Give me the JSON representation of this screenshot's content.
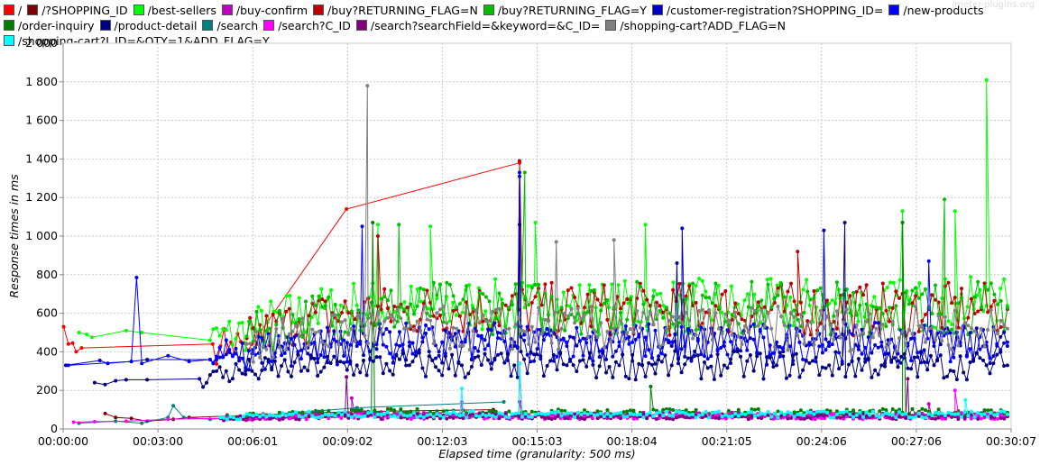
{
  "watermark": "jmeter-plugins.org",
  "chart_data": {
    "type": "line",
    "xlabel": "Elapsed time (granularity: 500 ms)",
    "ylabel": "Response times in ms",
    "ylim": [
      0,
      2000
    ],
    "xlim_seconds": [
      0,
      1807
    ],
    "x_ticks": [
      "00:00:00",
      "00:03:00",
      "00:06:01",
      "00:09:02",
      "00:12:03",
      "00:15:03",
      "00:18:04",
      "00:21:05",
      "00:24:06",
      "00:27:06",
      "00:30:07"
    ],
    "y_ticks": [
      "0",
      "200",
      "400",
      "600",
      "800",
      "1 000",
      "1 200",
      "1 400",
      "1 600",
      "1 800",
      "2 000"
    ],
    "grid": true,
    "legend_position": "top",
    "series": [
      {
        "name": "/",
        "color": "#ff0000",
        "points": [
          [
            1,
            530
          ],
          [
            10,
            440
          ],
          [
            18,
            445
          ],
          [
            25,
            400
          ],
          [
            35,
            420
          ],
          [
            285,
            440
          ],
          [
            300,
            430
          ],
          [
            320,
            450
          ],
          [
            345,
            445
          ],
          [
            360,
            440
          ]
        ],
        "peaks": [
          [
            540,
            1140
          ],
          [
            870,
            1380
          ]
        ]
      },
      {
        "name": "/?SHOPPING_ID",
        "color": "#800000",
        "points": [
          [
            80,
            80
          ],
          [
            100,
            60
          ],
          [
            130,
            55
          ],
          [
            160,
            40
          ],
          [
            210,
            50
          ],
          [
            240,
            60
          ]
        ],
        "peaks": [
          [
            560,
            90
          ],
          [
            820,
            100
          ]
        ]
      },
      {
        "name": "/best-sellers",
        "color": "#00ff00",
        "points": [
          [
            30,
            500
          ],
          [
            45,
            490
          ],
          [
            55,
            475
          ],
          [
            120,
            510
          ],
          [
            150,
            500
          ],
          [
            280,
            460
          ],
          [
            360,
            520
          ],
          [
            420,
            580
          ],
          [
            480,
            600
          ],
          [
            560,
            640
          ],
          [
            620,
            630
          ],
          [
            700,
            620
          ],
          [
            780,
            640
          ],
          [
            880,
            630
          ],
          [
            960,
            640
          ],
          [
            1040,
            630
          ],
          [
            1120,
            640
          ],
          [
            1200,
            640
          ],
          [
            1280,
            630
          ],
          [
            1380,
            640
          ],
          [
            1460,
            650
          ],
          [
            1540,
            640
          ],
          [
            1620,
            640
          ],
          [
            1700,
            650
          ],
          [
            1760,
            640
          ],
          [
            1800,
            640
          ]
        ],
        "peaks": [
          [
            600,
            1060
          ],
          [
            700,
            1050
          ],
          [
            900,
            1070
          ],
          [
            1110,
            1060
          ],
          [
            1600,
            1130
          ],
          [
            1700,
            1130
          ],
          [
            1760,
            1810
          ]
        ]
      },
      {
        "name": "/buy-confirm",
        "color": "#c000c0",
        "points": [
          [
            300,
            60
          ],
          [
            400,
            65
          ],
          [
            500,
            70
          ],
          [
            600,
            72
          ],
          [
            700,
            70
          ],
          [
            800,
            70
          ],
          [
            900,
            72
          ],
          [
            1000,
            70
          ],
          [
            1100,
            72
          ],
          [
            1200,
            70
          ],
          [
            1300,
            72
          ],
          [
            1400,
            70
          ],
          [
            1500,
            72
          ],
          [
            1600,
            70
          ],
          [
            1700,
            72
          ],
          [
            1800,
            70
          ]
        ],
        "peaks": [
          [
            550,
            160
          ],
          [
            870,
            140
          ],
          [
            1650,
            130
          ]
        ]
      },
      {
        "name": "/buy?RETURNING_FLAG=N",
        "color": "#c00000",
        "points": [
          [
            350,
            470
          ],
          [
            450,
            560
          ],
          [
            550,
            600
          ],
          [
            650,
            610
          ],
          [
            750,
            620
          ],
          [
            850,
            620
          ],
          [
            950,
            620
          ],
          [
            1050,
            620
          ],
          [
            1150,
            620
          ],
          [
            1250,
            620
          ],
          [
            1350,
            620
          ],
          [
            1450,
            620
          ],
          [
            1550,
            620
          ],
          [
            1650,
            620
          ],
          [
            1750,
            620
          ],
          [
            1800,
            620
          ]
        ],
        "peaks": [
          [
            600,
            1000
          ],
          [
            870,
            1390
          ],
          [
            1400,
            920
          ]
        ]
      },
      {
        "name": "/buy?RETURNING_FLAG=Y",
        "color": "#00c000",
        "points": [
          [
            350,
            480
          ],
          [
            450,
            570
          ],
          [
            550,
            610
          ],
          [
            650,
            620
          ],
          [
            750,
            630
          ],
          [
            850,
            630
          ],
          [
            950,
            630
          ],
          [
            1050,
            630
          ],
          [
            1150,
            630
          ],
          [
            1250,
            630
          ],
          [
            1350,
            630
          ],
          [
            1450,
            630
          ],
          [
            1550,
            630
          ],
          [
            1650,
            630
          ],
          [
            1750,
            630
          ],
          [
            1800,
            630
          ]
        ],
        "peaks": [
          [
            640,
            1060
          ],
          [
            880,
            1330
          ],
          [
            1680,
            1190
          ]
        ]
      },
      {
        "name": "/customer-registration?SHOPPING_ID=",
        "color": "#0000c0",
        "points": [
          [
            5,
            330
          ],
          [
            70,
            355
          ],
          [
            85,
            340
          ],
          [
            130,
            350
          ],
          [
            160,
            360
          ],
          [
            280,
            360
          ],
          [
            360,
            390
          ],
          [
            460,
            420
          ],
          [
            560,
            430
          ],
          [
            660,
            430
          ],
          [
            760,
            430
          ],
          [
            860,
            430
          ],
          [
            960,
            430
          ],
          [
            1060,
            430
          ],
          [
            1160,
            430
          ],
          [
            1260,
            430
          ],
          [
            1360,
            430
          ],
          [
            1460,
            430
          ],
          [
            1560,
            430
          ],
          [
            1660,
            430
          ],
          [
            1760,
            430
          ],
          [
            1800,
            430
          ]
        ],
        "peaks": [
          [
            870,
            1310
          ],
          [
            1180,
            1040
          ],
          [
            1450,
            1030
          ]
        ]
      },
      {
        "name": "/new-products",
        "color": "#0000ff",
        "points": [
          [
            10,
            330
          ],
          [
            130,
            350
          ],
          [
            140,
            785
          ],
          [
            150,
            340
          ],
          [
            200,
            380
          ],
          [
            240,
            350
          ],
          [
            280,
            360
          ],
          [
            360,
            410
          ],
          [
            460,
            440
          ],
          [
            560,
            450
          ],
          [
            660,
            450
          ],
          [
            760,
            450
          ],
          [
            860,
            450
          ],
          [
            960,
            450
          ],
          [
            1060,
            450
          ],
          [
            1160,
            450
          ],
          [
            1260,
            450
          ],
          [
            1360,
            450
          ],
          [
            1460,
            450
          ],
          [
            1560,
            450
          ],
          [
            1660,
            450
          ],
          [
            1760,
            450
          ],
          [
            1800,
            450
          ]
        ],
        "peaks": [
          [
            570,
            1050
          ],
          [
            870,
            1330
          ],
          [
            1650,
            870
          ]
        ]
      },
      {
        "name": "/order-inquiry",
        "color": "#008000",
        "points": [
          [
            300,
            60
          ],
          [
            400,
            70
          ],
          [
            500,
            80
          ],
          [
            600,
            85
          ],
          [
            700,
            85
          ],
          [
            800,
            85
          ],
          [
            900,
            85
          ],
          [
            1000,
            85
          ],
          [
            1100,
            85
          ],
          [
            1200,
            85
          ],
          [
            1300,
            85
          ],
          [
            1400,
            85
          ],
          [
            1500,
            85
          ],
          [
            1600,
            85
          ],
          [
            1700,
            85
          ],
          [
            1800,
            85
          ]
        ],
        "peaks": [
          [
            590,
            1070
          ],
          [
            1120,
            220
          ],
          [
            1600,
            1070
          ]
        ]
      },
      {
        "name": "/product-detail",
        "color": "#000080",
        "points": [
          [
            60,
            240
          ],
          [
            80,
            230
          ],
          [
            100,
            250
          ],
          [
            120,
            255
          ],
          [
            160,
            255
          ],
          [
            260,
            260
          ],
          [
            280,
            280
          ],
          [
            360,
            300
          ],
          [
            460,
            320
          ],
          [
            560,
            330
          ],
          [
            660,
            330
          ],
          [
            760,
            330
          ],
          [
            860,
            330
          ],
          [
            960,
            330
          ],
          [
            1060,
            330
          ],
          [
            1160,
            330
          ],
          [
            1260,
            330
          ],
          [
            1360,
            330
          ],
          [
            1460,
            330
          ],
          [
            1560,
            330
          ],
          [
            1660,
            330
          ],
          [
            1760,
            330
          ],
          [
            1800,
            330
          ]
        ],
        "peaks": [
          [
            870,
            1060
          ],
          [
            1170,
            860
          ],
          [
            1490,
            1070
          ]
        ]
      },
      {
        "name": "/search",
        "color": "#008080",
        "points": [
          [
            30,
            30
          ],
          [
            100,
            40
          ],
          [
            150,
            30
          ],
          [
            200,
            60
          ],
          [
            210,
            120
          ],
          [
            230,
            60
          ],
          [
            280,
            50
          ]
        ],
        "peaks": [
          [
            560,
            110
          ],
          [
            840,
            140
          ]
        ]
      },
      {
        "name": "/search?C_ID",
        "color": "#ff00ff",
        "points": [
          [
            20,
            35
          ],
          [
            60,
            38
          ],
          [
            120,
            40
          ],
          [
            200,
            50
          ],
          [
            300,
            55
          ],
          [
            500,
            65
          ],
          [
            700,
            65
          ],
          [
            900,
            65
          ],
          [
            1100,
            65
          ],
          [
            1300,
            65
          ],
          [
            1500,
            65
          ],
          [
            1700,
            65
          ],
          [
            1800,
            65
          ]
        ],
        "peaks": [
          [
            760,
            140
          ],
          [
            1700,
            200
          ]
        ]
      },
      {
        "name": "/search?searchField=&keyword=&C_ID=",
        "color": "#800080",
        "points": [
          [
            300,
            55
          ],
          [
            400,
            60
          ],
          [
            500,
            65
          ],
          [
            600,
            65
          ],
          [
            700,
            65
          ],
          [
            800,
            65
          ],
          [
            900,
            65
          ],
          [
            1000,
            65
          ],
          [
            1100,
            65
          ],
          [
            1200,
            65
          ],
          [
            1300,
            65
          ],
          [
            1400,
            65
          ],
          [
            1500,
            65
          ],
          [
            1600,
            65
          ],
          [
            1700,
            65
          ],
          [
            1800,
            65
          ]
        ],
        "peaks": [
          [
            540,
            270
          ],
          [
            870,
            340
          ],
          [
            1610,
            260
          ]
        ]
      },
      {
        "name": "/shopping-cart?ADD_FLAG=N",
        "color": "#808080",
        "points": [
          [
            350,
            440
          ],
          [
            450,
            480
          ],
          [
            550,
            520
          ],
          [
            650,
            520
          ],
          [
            750,
            520
          ],
          [
            850,
            520
          ],
          [
            950,
            520
          ],
          [
            1050,
            520
          ],
          [
            1150,
            520
          ],
          [
            1250,
            520
          ],
          [
            1350,
            520
          ],
          [
            1450,
            520
          ],
          [
            1550,
            520
          ],
          [
            1650,
            520
          ],
          [
            1750,
            520
          ],
          [
            1800,
            520
          ]
        ],
        "peaks": [
          [
            580,
            1780
          ],
          [
            940,
            970
          ],
          [
            1050,
            980
          ]
        ]
      },
      {
        "name": "/shopping-cart?I_ID=&QTY=1&ADD_FLAG=Y",
        "color": "#00ffff",
        "points": [
          [
            300,
            60
          ],
          [
            400,
            70
          ],
          [
            500,
            75
          ],
          [
            600,
            75
          ],
          [
            700,
            75
          ],
          [
            800,
            75
          ],
          [
            900,
            75
          ],
          [
            1000,
            75
          ],
          [
            1100,
            75
          ],
          [
            1200,
            75
          ],
          [
            1300,
            75
          ],
          [
            1400,
            75
          ],
          [
            1500,
            75
          ],
          [
            1600,
            75
          ],
          [
            1700,
            75
          ],
          [
            1800,
            75
          ]
        ],
        "peaks": [
          [
            760,
            210
          ],
          [
            870,
            340
          ],
          [
            1720,
            150
          ]
        ]
      }
    ]
  }
}
